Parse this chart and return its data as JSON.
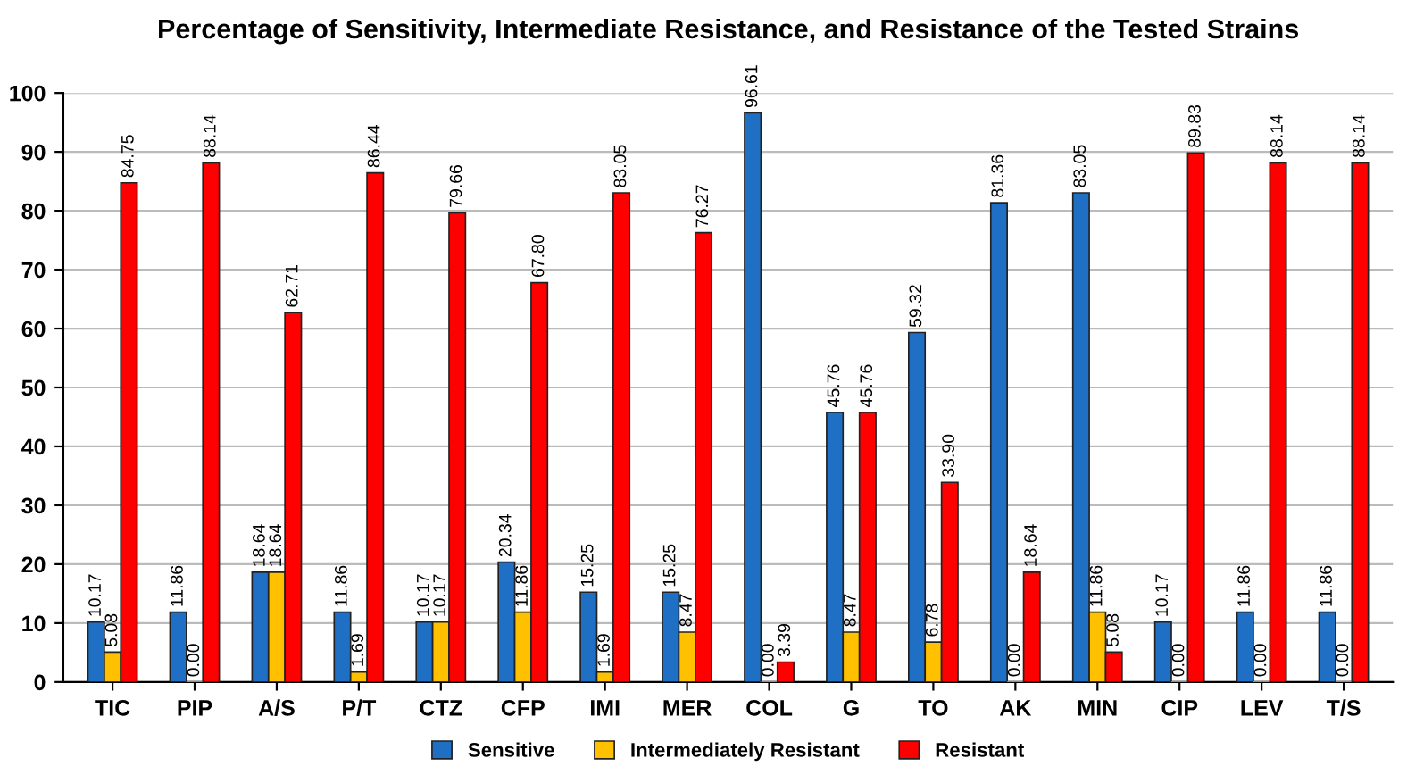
{
  "chart_data": {
    "type": "bar",
    "title": "Percentage of Sensitivity, Intermediate Resistance, and Resistance of the Tested Strains",
    "categories": [
      "TIC",
      "PIP",
      "A/S",
      "P/T",
      "CTZ",
      "CFP",
      "IMI",
      "MER",
      "COL",
      "G",
      "TO",
      "AK",
      "MIN",
      "CIP",
      "LEV",
      "T/S"
    ],
    "series": [
      {
        "name": "Sensitive",
        "color": "#1f6fc5",
        "values": [
          10.17,
          11.86,
          18.64,
          11.86,
          10.17,
          20.34,
          15.25,
          15.25,
          96.61,
          45.76,
          59.32,
          81.36,
          83.05,
          10.17,
          11.86,
          11.86
        ],
        "value_labels": [
          "10.17",
          "11.86",
          "18.64",
          "11.86",
          "10.17",
          "20.34",
          "15.25",
          "15.25",
          "96.61",
          "45.76",
          "59.32",
          "81.36",
          "83.05",
          "10.17",
          "11.86",
          "11.86"
        ]
      },
      {
        "name": "Intermediately Resistant",
        "color": "#ffc000",
        "values": [
          5.08,
          0.0,
          18.64,
          1.69,
          10.17,
          11.86,
          1.69,
          8.47,
          0.0,
          8.47,
          6.78,
          0.0,
          11.86,
          0.0,
          0.0,
          0.0
        ],
        "value_labels": [
          "5.08",
          "0.00",
          "18.64",
          "1.69",
          "10.17",
          "11.86",
          "1.69",
          "8.47",
          "0.00",
          "8.47",
          "6.78",
          "0.00",
          "11.86",
          "0.00",
          "0.00",
          "0.00"
        ]
      },
      {
        "name": "Resistant",
        "color": "#ff0000",
        "values": [
          84.75,
          88.14,
          62.71,
          86.44,
          79.66,
          67.8,
          83.05,
          76.27,
          3.39,
          45.76,
          33.9,
          18.64,
          5.08,
          89.83,
          88.14,
          88.14
        ],
        "value_labels": [
          "84.75",
          "88.14",
          "62.71",
          "86.44",
          "79.66",
          "67.80",
          "83.05",
          "76.27",
          "3.39",
          "45.76",
          "33.90",
          "18.64",
          "5.08",
          "89.83",
          "88.14",
          "88.14"
        ]
      }
    ],
    "ylim": [
      0,
      100
    ],
    "yticks": [
      0,
      10,
      20,
      30,
      40,
      50,
      60,
      70,
      80,
      90,
      100
    ],
    "grid": "y",
    "legend": "bottom"
  }
}
